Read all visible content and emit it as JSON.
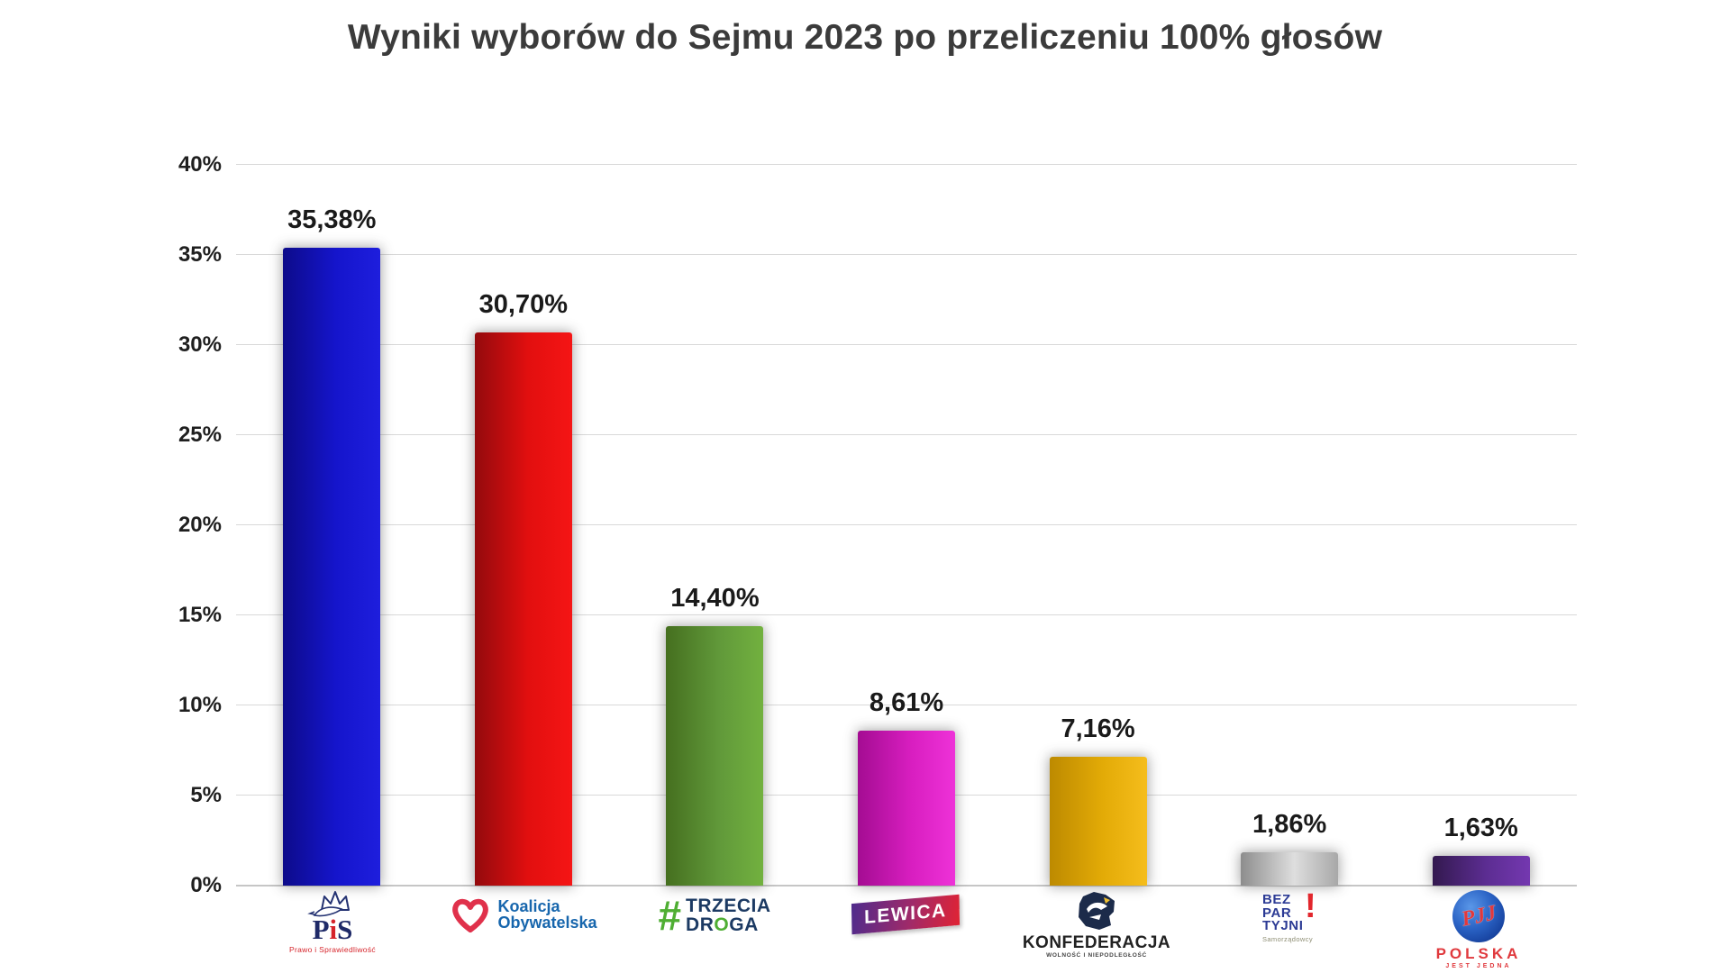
{
  "title": "Wyniki wyborów do Sejmu 2023 po przeliczeniu 100% głosów",
  "chart_data": {
    "type": "bar",
    "title": "Wyniki wyborów do Sejmu 2023 po przeliczeniu 100% głosów",
    "categories": [
      "PiS",
      "Koalicja Obywatelska",
      "Trzecia Droga",
      "Lewica",
      "Konfederacja",
      "Bezpartyjni Samorządowcy",
      "Polska Jest Jedna"
    ],
    "keys": [
      "pis",
      "koalicja-obywatelska",
      "trzecia-droga",
      "lewica",
      "konfederacja",
      "bezpartyjni",
      "polska-jest-jedna"
    ],
    "values": [
      35.38,
      30.7,
      14.4,
      8.61,
      7.16,
      1.86,
      1.63
    ],
    "value_labels": [
      "35,38%",
      "30,70%",
      "14,40%",
      "8,61%",
      "7,16%",
      "1,86%",
      "1,63%"
    ],
    "xlabel": "",
    "ylabel": "",
    "ylim": [
      0,
      40
    ],
    "ytick_step": 5,
    "ytick_labels": [
      "0%",
      "5%",
      "10%",
      "15%",
      "20%",
      "25%",
      "30%",
      "35%",
      "40%"
    ],
    "grid": true,
    "legend": false,
    "bar_colors": [
      {
        "name": "pis-blue",
        "stops": [
          "#0d0b8a",
          "#1515cc",
          "#1e1edd"
        ]
      },
      {
        "name": "ko-red",
        "stops": [
          "#930a0d",
          "#e20f0f",
          "#f51515"
        ]
      },
      {
        "name": "td-green",
        "stops": [
          "#456f1f",
          "#61993a",
          "#72b13f"
        ]
      },
      {
        "name": "lewica-magenta",
        "stops": [
          "#a40c92",
          "#d81ec0",
          "#ee32d8"
        ]
      },
      {
        "name": "konfederacja-gold",
        "stops": [
          "#bd8a00",
          "#e3ab07",
          "#f5bd1c"
        ]
      },
      {
        "name": "bezpartyjni-silver",
        "stops": [
          "#8d8d8d",
          "#dedede",
          "#a8a8a8"
        ]
      },
      {
        "name": "pjj-purple",
        "stops": [
          "#33194f",
          "#5c2d92",
          "#7438b0"
        ]
      }
    ]
  },
  "logos": {
    "pis": {
      "t1": "P",
      "t2": "i",
      "t3": "S",
      "subtext": "Prawo i Sprawiedliwość"
    },
    "ko": {
      "line1": "Koalicja",
      "line2": "Obywatelska"
    },
    "trzecia_droga": {
      "hash": "#",
      "line1": "TRZECIA",
      "line2a": "DR",
      "line2o": "O",
      "line2b": "GA"
    },
    "lewica": {
      "text": "LEWICA"
    },
    "konfederacja": {
      "text": "KONFEDERACJA",
      "subtext": "WOLNOŚĆ I NIEPODLEGŁOŚĆ"
    },
    "bezpartyjni": {
      "line1": "BEZ",
      "line2": "PAR",
      "line3": "TYJNI",
      "bang": "!",
      "subtext": "Samorządowcy"
    },
    "pjj": {
      "monogram": "PJJ",
      "line1": "POLSKA",
      "line2": "JEST JEDNA"
    }
  },
  "colors": {
    "background": "#ffffff",
    "title_text": "#3b3b3b",
    "axis_text": "#1f1f1f",
    "value_label_text": "#1a1a1a",
    "gridline": "#d9d9d9",
    "baseline": "#c6c6c6"
  }
}
